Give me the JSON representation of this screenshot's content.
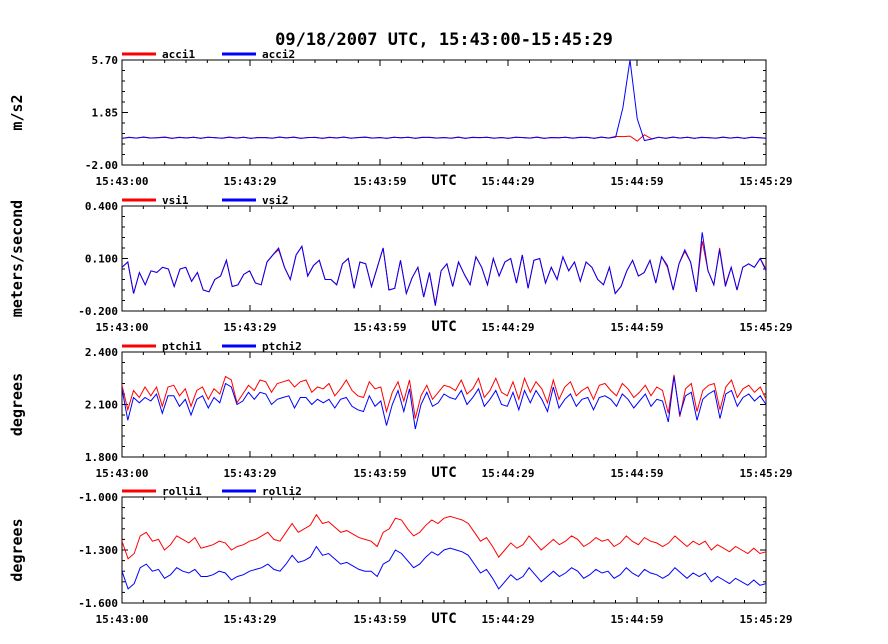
{
  "title": "09/18/2007  UTC, 15:43:00-15:45:29",
  "chart_data": [
    {
      "type": "line",
      "ylabel": "m/s2",
      "xlabel": "UTC",
      "ylim": [
        -2.0,
        5.7
      ],
      "yticks": [
        "5.70",
        "1.85",
        "-2.00"
      ],
      "xticks": [
        "15:43:00",
        "15:43:29",
        "15:43:59",
        "15:44:29",
        "15:44:59",
        "15:45:29"
      ],
      "x_range_seconds": [
        0,
        149
      ],
      "colors": [
        "#ff0000",
        "#0000ff"
      ],
      "series": [
        {
          "name": "acci1",
          "values": [
            -0.05,
            0.02,
            -0.02,
            0.04,
            -0.03,
            0.01,
            0.05,
            -0.04,
            0.02,
            -0.01,
            0.03,
            -0.05,
            0.04,
            0.0,
            -0.03,
            0.05,
            -0.02,
            0.03,
            -0.04,
            0.01,
            0.02,
            -0.03,
            0.04,
            -0.02,
            0.05,
            -0.04,
            0.01,
            0.03,
            -0.05,
            0.02,
            -0.01,
            0.04,
            -0.03,
            0.02,
            0.05,
            -0.02,
            0.01,
            -0.04,
            0.03,
            -0.01,
            0.04,
            -0.05,
            0.02,
            0.03,
            -0.02,
            0.01,
            -0.03,
            0.05,
            -0.04,
            0.02,
            0.0,
            0.04,
            -0.03,
            0.01,
            -0.05,
            0.03,
            0.02,
            -0.02,
            0.05,
            -0.04,
            0.01,
            -0.01,
            0.04,
            -0.03,
            0.02,
            0.03,
            -0.05,
            0.04,
            -0.02,
            0.1,
            0.08,
            0.12,
            -0.25,
            0.22,
            -0.08,
            0.03,
            -0.05,
            0.04,
            -0.02,
            0.03,
            -0.04,
            0.02,
            0.01,
            -0.03,
            0.05,
            -0.02,
            0.02,
            -0.04,
            0.03,
            0.01,
            -0.03
          ]
        },
        {
          "name": "acci2",
          "values": [
            -0.04,
            0.03,
            -0.03,
            0.05,
            -0.02,
            0.0,
            0.04,
            -0.05,
            0.03,
            -0.02,
            0.04,
            -0.04,
            0.03,
            0.01,
            -0.04,
            0.04,
            -0.03,
            0.04,
            -0.05,
            0.02,
            0.01,
            -0.04,
            0.05,
            -0.01,
            0.04,
            -0.05,
            0.02,
            0.02,
            -0.04,
            0.03,
            -0.02,
            0.05,
            -0.04,
            0.01,
            0.04,
            -0.03,
            0.02,
            -0.05,
            0.04,
            0.0,
            0.03,
            -0.04,
            0.03,
            0.02,
            -0.03,
            0.02,
            -0.04,
            0.04,
            -0.05,
            0.03,
            0.01,
            0.03,
            -0.04,
            0.02,
            -0.04,
            0.04,
            0.01,
            -0.03,
            0.04,
            -0.05,
            0.02,
            0.0,
            0.03,
            -0.04,
            0.03,
            0.02,
            -0.04,
            0.05,
            -0.03,
            0.05,
            2.2,
            5.7,
            1.4,
            -0.2,
            -0.1,
            0.04,
            -0.04,
            0.05,
            -0.03,
            0.04,
            -0.05,
            0.03,
            0.0,
            -0.04,
            0.04,
            -0.03,
            0.03,
            -0.05,
            0.04,
            0.0,
            -0.04
          ]
        }
      ]
    },
    {
      "type": "line",
      "ylabel": "meters/second",
      "xlabel": "UTC",
      "ylim": [
        -0.2,
        0.4
      ],
      "yticks": [
        "0.400",
        "0.100",
        "-0.200"
      ],
      "xticks": [
        "15:43:00",
        "15:43:29",
        "15:43:59",
        "15:44:29",
        "15:44:59",
        "15:45:29"
      ],
      "x_range_seconds": [
        0,
        149
      ],
      "colors": [
        "#ff0000",
        "#0000ff"
      ],
      "series": [
        {
          "name": "vsi1",
          "values": [
            0.05,
            0.08,
            -0.1,
            0.02,
            -0.05,
            0.03,
            0.02,
            0.05,
            0.04,
            -0.06,
            0.04,
            0.05,
            -0.03,
            0.02,
            -0.08,
            -0.09,
            -0.02,
            0.0,
            0.09,
            -0.06,
            -0.05,
            0.01,
            0.03,
            -0.04,
            -0.05,
            0.08,
            0.12,
            0.15,
            0.05,
            -0.02,
            0.12,
            0.17,
            0.0,
            0.06,
            0.09,
            -0.02,
            -0.02,
            -0.05,
            0.07,
            0.1,
            -0.07,
            0.08,
            0.07,
            -0.06,
            0.05,
            0.16,
            -0.08,
            -0.07,
            0.09,
            -0.1,
            -0.01,
            0.05,
            -0.12,
            0.02,
            -0.16,
            0.03,
            0.07,
            -0.06,
            0.08,
            0.01,
            -0.05,
            0.11,
            0.05,
            -0.05,
            0.1,
            0.0,
            0.08,
            0.1,
            -0.04,
            0.12,
            -0.07,
            0.09,
            0.1,
            -0.04,
            0.05,
            -0.02,
            0.11,
            0.03,
            0.08,
            -0.03,
            0.08,
            0.05,
            -0.02,
            -0.05,
            0.05,
            -0.1,
            -0.06,
            0.03,
            0.09,
            0.0,
            0.02,
            0.09,
            -0.04,
            0.11,
            0.05,
            -0.08,
            0.07,
            0.14,
            0.08,
            -0.09,
            0.2,
            0.03,
            -0.05,
            0.16,
            -0.05,
            0.05,
            -0.08,
            0.05,
            0.07,
            0.05,
            0.1,
            0.04
          ]
        },
        {
          "name": "vsi2",
          "values": [
            0.05,
            0.08,
            -0.1,
            0.02,
            -0.05,
            0.03,
            0.02,
            0.05,
            0.04,
            -0.06,
            0.04,
            0.05,
            -0.03,
            0.02,
            -0.08,
            -0.09,
            -0.02,
            0.0,
            0.09,
            -0.06,
            -0.05,
            0.01,
            0.03,
            -0.04,
            -0.05,
            0.08,
            0.12,
            0.16,
            0.05,
            -0.02,
            0.12,
            0.17,
            0.0,
            0.06,
            0.09,
            -0.02,
            -0.02,
            -0.05,
            0.07,
            0.1,
            -0.07,
            0.08,
            0.07,
            -0.06,
            0.05,
            0.16,
            -0.08,
            -0.07,
            0.09,
            -0.1,
            -0.01,
            0.05,
            -0.12,
            0.02,
            -0.17,
            0.03,
            0.07,
            -0.06,
            0.08,
            0.01,
            -0.05,
            0.11,
            0.05,
            -0.05,
            0.1,
            0.0,
            0.08,
            0.1,
            -0.04,
            0.12,
            -0.07,
            0.09,
            0.1,
            -0.04,
            0.05,
            -0.02,
            0.11,
            0.03,
            0.08,
            -0.03,
            0.08,
            0.05,
            -0.02,
            -0.05,
            0.05,
            -0.1,
            -0.06,
            0.03,
            0.09,
            0.0,
            0.02,
            0.09,
            -0.04,
            0.11,
            0.06,
            -0.08,
            0.07,
            0.15,
            0.08,
            -0.09,
            0.25,
            0.03,
            -0.05,
            0.15,
            -0.06,
            0.05,
            -0.08,
            0.05,
            0.07,
            0.05,
            0.1,
            0.03
          ]
        }
      ]
    },
    {
      "type": "line",
      "ylabel": "degrees",
      "xlabel": "UTC",
      "ylim": [
        1.8,
        2.4
      ],
      "yticks": [
        "2.400",
        "2.100",
        "1.800"
      ],
      "xticks": [
        "15:43:00",
        "15:43:29",
        "15:43:59",
        "15:44:29",
        "15:44:59",
        "15:45:29"
      ],
      "x_range_seconds": [
        0,
        149
      ],
      "colors": [
        "#ff0000",
        "#0000ff"
      ],
      "series": [
        {
          "name": "ptchi1",
          "values": [
            2.21,
            2.07,
            2.18,
            2.14,
            2.2,
            2.15,
            2.2,
            2.09,
            2.2,
            2.21,
            2.15,
            2.19,
            2.09,
            2.18,
            2.2,
            2.13,
            2.19,
            2.16,
            2.26,
            2.24,
            2.11,
            2.16,
            2.21,
            2.18,
            2.24,
            2.23,
            2.17,
            2.22,
            2.23,
            2.24,
            2.2,
            2.23,
            2.24,
            2.17,
            2.2,
            2.19,
            2.22,
            2.15,
            2.19,
            2.24,
            2.18,
            2.15,
            2.14,
            2.23,
            2.19,
            2.2,
            2.06,
            2.17,
            2.23,
            2.12,
            2.24,
            2.02,
            2.15,
            2.21,
            2.13,
            2.17,
            2.21,
            2.2,
            2.18,
            2.24,
            2.16,
            2.19,
            2.25,
            2.14,
            2.18,
            2.25,
            2.17,
            2.15,
            2.23,
            2.13,
            2.25,
            2.17,
            2.23,
            2.19,
            2.11,
            2.24,
            2.13,
            2.2,
            2.23,
            2.15,
            2.18,
            2.2,
            2.13,
            2.21,
            2.22,
            2.18,
            2.15,
            2.22,
            2.19,
            2.14,
            2.17,
            2.21,
            2.15,
            2.2,
            2.18,
            2.05,
            2.27,
            2.03,
            2.19,
            2.22,
            2.06,
            2.18,
            2.21,
            2.22,
            2.07,
            2.2,
            2.24,
            2.14,
            2.19,
            2.21,
            2.17,
            2.2,
            2.13
          ]
        },
        {
          "name": "ptchi2",
          "values": [
            2.19,
            2.01,
            2.14,
            2.11,
            2.14,
            2.12,
            2.16,
            2.05,
            2.15,
            2.15,
            2.09,
            2.13,
            2.04,
            2.13,
            2.15,
            2.08,
            2.14,
            2.11,
            2.22,
            2.2,
            2.1,
            2.12,
            2.17,
            2.13,
            2.17,
            2.16,
            2.1,
            2.13,
            2.14,
            2.15,
            2.08,
            2.14,
            2.14,
            2.1,
            2.13,
            2.11,
            2.13,
            2.08,
            2.13,
            2.14,
            2.09,
            2.07,
            2.06,
            2.15,
            2.09,
            2.12,
            1.98,
            2.1,
            2.18,
            2.06,
            2.19,
            1.96,
            2.1,
            2.17,
            2.09,
            2.11,
            2.16,
            2.14,
            2.13,
            2.18,
            2.1,
            2.14,
            2.19,
            2.09,
            2.13,
            2.18,
            2.1,
            2.09,
            2.17,
            2.07,
            2.18,
            2.11,
            2.18,
            2.13,
            2.06,
            2.2,
            2.08,
            2.13,
            2.16,
            2.09,
            2.13,
            2.14,
            2.07,
            2.14,
            2.15,
            2.13,
            2.09,
            2.16,
            2.13,
            2.08,
            2.12,
            2.16,
            2.09,
            2.13,
            2.12,
            2.0,
            2.26,
            2.04,
            2.15,
            2.17,
            2.01,
            2.13,
            2.16,
            2.18,
            2.02,
            2.16,
            2.18,
            2.09,
            2.14,
            2.16,
            2.12,
            2.15,
            2.1
          ]
        }
      ]
    },
    {
      "type": "line",
      "ylabel": "degrees",
      "xlabel": "UTC",
      "ylim": [
        -1.6,
        -1.0
      ],
      "yticks": [
        "-1.000",
        "-1.300",
        "-1.600"
      ],
      "xticks": [
        "15:43:00",
        "15:43:29",
        "15:43:59",
        "15:44:29",
        "15:44:59",
        "15:45:29"
      ],
      "x_range_seconds": [
        0,
        149
      ],
      "colors": [
        "#ff0000",
        "#0000ff"
      ],
      "series": [
        {
          "name": "rolli1",
          "values": [
            -1.25,
            -1.35,
            -1.32,
            -1.22,
            -1.2,
            -1.25,
            -1.24,
            -1.3,
            -1.27,
            -1.22,
            -1.24,
            -1.26,
            -1.23,
            -1.29,
            -1.28,
            -1.27,
            -1.25,
            -1.26,
            -1.3,
            -1.28,
            -1.27,
            -1.25,
            -1.24,
            -1.22,
            -1.2,
            -1.24,
            -1.25,
            -1.2,
            -1.15,
            -1.2,
            -1.18,
            -1.16,
            -1.1,
            -1.15,
            -1.14,
            -1.17,
            -1.2,
            -1.19,
            -1.21,
            -1.23,
            -1.24,
            -1.25,
            -1.28,
            -1.2,
            -1.18,
            -1.12,
            -1.13,
            -1.18,
            -1.22,
            -1.2,
            -1.16,
            -1.13,
            -1.15,
            -1.12,
            -1.11,
            -1.12,
            -1.13,
            -1.15,
            -1.2,
            -1.25,
            -1.23,
            -1.28,
            -1.34,
            -1.3,
            -1.26,
            -1.29,
            -1.27,
            -1.22,
            -1.26,
            -1.3,
            -1.27,
            -1.24,
            -1.27,
            -1.25,
            -1.22,
            -1.24,
            -1.28,
            -1.26,
            -1.23,
            -1.25,
            -1.24,
            -1.28,
            -1.26,
            -1.22,
            -1.25,
            -1.27,
            -1.23,
            -1.25,
            -1.26,
            -1.28,
            -1.26,
            -1.22,
            -1.25,
            -1.28,
            -1.25,
            -1.27,
            -1.25,
            -1.3,
            -1.27,
            -1.29,
            -1.31,
            -1.28,
            -1.3,
            -1.32,
            -1.29,
            -1.32,
            -1.31
          ]
        },
        {
          "name": "rolli2",
          "values": [
            -1.42,
            -1.52,
            -1.49,
            -1.4,
            -1.38,
            -1.42,
            -1.41,
            -1.46,
            -1.44,
            -1.4,
            -1.42,
            -1.43,
            -1.41,
            -1.45,
            -1.45,
            -1.44,
            -1.42,
            -1.43,
            -1.47,
            -1.45,
            -1.44,
            -1.42,
            -1.41,
            -1.4,
            -1.38,
            -1.41,
            -1.42,
            -1.38,
            -1.33,
            -1.37,
            -1.36,
            -1.34,
            -1.28,
            -1.33,
            -1.32,
            -1.35,
            -1.38,
            -1.37,
            -1.39,
            -1.41,
            -1.42,
            -1.42,
            -1.45,
            -1.38,
            -1.36,
            -1.3,
            -1.32,
            -1.36,
            -1.4,
            -1.38,
            -1.34,
            -1.31,
            -1.33,
            -1.3,
            -1.29,
            -1.3,
            -1.31,
            -1.33,
            -1.38,
            -1.43,
            -1.41,
            -1.46,
            -1.52,
            -1.48,
            -1.44,
            -1.47,
            -1.45,
            -1.4,
            -1.44,
            -1.48,
            -1.45,
            -1.42,
            -1.45,
            -1.43,
            -1.4,
            -1.42,
            -1.46,
            -1.44,
            -1.41,
            -1.43,
            -1.42,
            -1.46,
            -1.44,
            -1.4,
            -1.43,
            -1.45,
            -1.41,
            -1.43,
            -1.44,
            -1.46,
            -1.44,
            -1.4,
            -1.43,
            -1.46,
            -1.43,
            -1.45,
            -1.43,
            -1.48,
            -1.45,
            -1.47,
            -1.49,
            -1.46,
            -1.48,
            -1.5,
            -1.47,
            -1.5,
            -1.49
          ]
        }
      ]
    }
  ]
}
